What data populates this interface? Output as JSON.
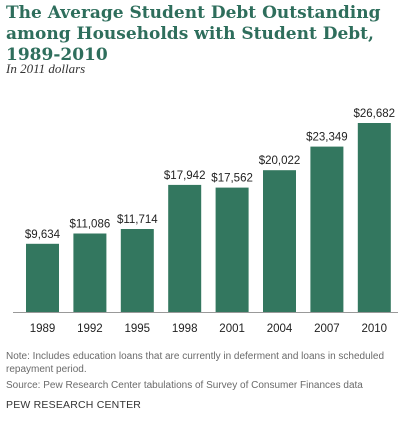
{
  "chart_data": {
    "type": "bar",
    "title": "The Average Student Debt Outstanding among Households with Student Debt, 1989-2010",
    "subtitle": "In 2011 dollars",
    "categories": [
      "1989",
      "1992",
      "1995",
      "1998",
      "2001",
      "2004",
      "2007",
      "2010"
    ],
    "values": [
      9634,
      11086,
      11714,
      17942,
      17562,
      20022,
      23349,
      26682
    ],
    "value_labels": [
      "$9,634",
      "$11,086",
      "$11,714",
      "$17,942",
      "$17,562",
      "$20,022",
      "$23,349",
      "$26,682"
    ],
    "xlabel": "",
    "ylabel": "",
    "ylim": [
      0,
      26682
    ],
    "grid": false,
    "legend": "none",
    "bar_color": "#33775f",
    "axis_color": "#999999"
  },
  "footer": {
    "note": "Note: Includes education loans that are currently in deferment and loans in scheduled repayment period.",
    "source": "Source: Pew Research Center tabulations of Survey of Consumer Finances data",
    "brand": "PEW RESEARCH CENTER"
  },
  "colors": {
    "title": "#2e6e5c",
    "bar": "#33775f"
  }
}
